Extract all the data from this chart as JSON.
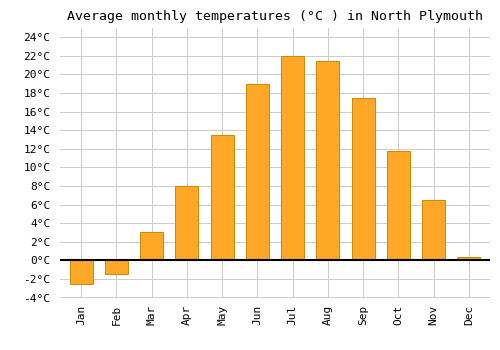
{
  "title": "Average monthly temperatures (°C ) in North Plymouth",
  "months": [
    "Jan",
    "Feb",
    "Mar",
    "Apr",
    "May",
    "Jun",
    "Jul",
    "Aug",
    "Sep",
    "Oct",
    "Nov",
    "Dec"
  ],
  "values": [
    -2.5,
    -1.5,
    3.0,
    8.0,
    13.5,
    19.0,
    22.0,
    21.5,
    17.5,
    11.8,
    6.5,
    0.4
  ],
  "bar_color": "#FFA726",
  "bar_edge_color": "#CC8800",
  "background_color": "#ffffff",
  "grid_color": "#cccccc",
  "ylim": [
    -4,
    25
  ],
  "yticks": [
    -4,
    -2,
    0,
    2,
    4,
    6,
    8,
    10,
    12,
    14,
    16,
    18,
    20,
    22,
    24
  ],
  "title_fontsize": 9.5,
  "tick_fontsize": 8,
  "font_family": "monospace",
  "bar_width": 0.65
}
